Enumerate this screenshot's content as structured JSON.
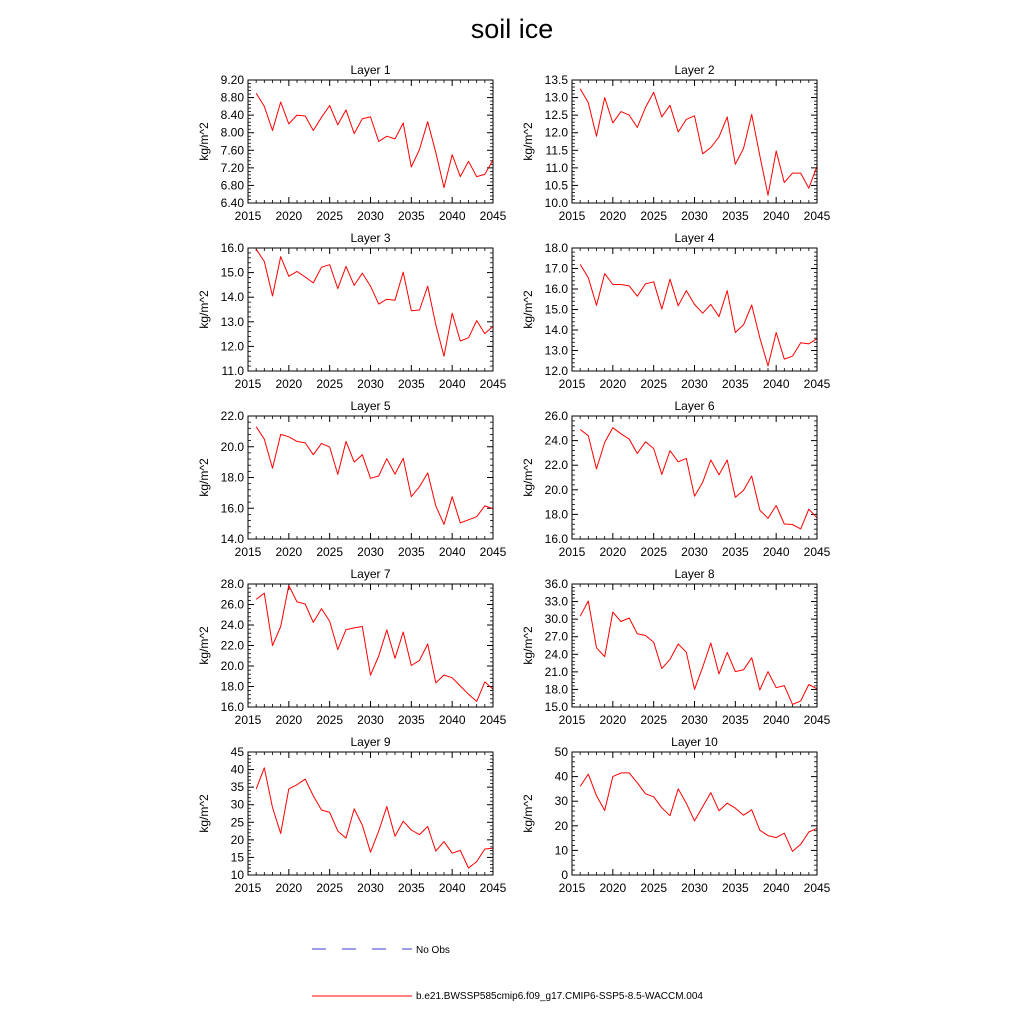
{
  "title": "soil ice",
  "colors": {
    "series": "#ff0000",
    "obs": "#3b3bd6",
    "axis": "#000000"
  },
  "legend": {
    "obs_label": "No Obs",
    "series_label": "b.e21.BWSSP585cmip6.f09_g17.CMIP6-SSP5-8.5-WACCM.004"
  },
  "chart_data": [
    {
      "type": "line",
      "title": "Layer 1",
      "ylabel": "kg/m^2",
      "xlim": [
        2015,
        2045
      ],
      "xticks": [
        2015,
        2020,
        2025,
        2030,
        2035,
        2040,
        2045
      ],
      "xtick_labels": [
        "2015",
        "2020",
        "2025",
        "2030",
        "2035",
        "2040",
        "2045"
      ],
      "ylim": [
        6.4,
        9.2
      ],
      "yticks": [
        6.4,
        6.8,
        7.2,
        7.6,
        8.0,
        8.4,
        8.8,
        9.2
      ],
      "ytick_labels": [
        "6.40",
        "6.80",
        "7.20",
        "7.60",
        "8.00",
        "8.40",
        "8.80",
        "9.20"
      ],
      "x": [
        2016,
        2017,
        2018,
        2019,
        2020,
        2021,
        2022,
        2023,
        2024,
        2025,
        2026,
        2027,
        2028,
        2029,
        2030,
        2031,
        2032,
        2033,
        2034,
        2035,
        2036,
        2037,
        2038,
        2039,
        2040,
        2041,
        2042,
        2043,
        2044,
        2045
      ],
      "y": [
        8.9,
        8.6,
        8.05,
        8.7,
        8.2,
        8.4,
        8.38,
        8.05,
        8.35,
        8.62,
        8.18,
        8.52,
        7.98,
        8.32,
        8.36,
        7.8,
        7.92,
        7.86,
        8.22,
        7.22,
        7.62,
        8.25,
        7.55,
        6.75,
        7.5,
        7.0,
        7.35,
        7.0,
        7.05,
        7.38
      ]
    },
    {
      "type": "line",
      "title": "Layer 2",
      "ylabel": "kg/m^2",
      "xlim": [
        2015,
        2045
      ],
      "xticks": [
        2015,
        2020,
        2025,
        2030,
        2035,
        2040,
        2045
      ],
      "xtick_labels": [
        "2015",
        "2020",
        "2025",
        "2030",
        "2035",
        "2040",
        "2045"
      ],
      "ylim": [
        10.0,
        13.5
      ],
      "yticks": [
        10.0,
        10.5,
        11.0,
        11.5,
        12.0,
        12.5,
        13.0,
        13.5
      ],
      "ytick_labels": [
        "10.0",
        "10.5",
        "11.0",
        "11.5",
        "12.0",
        "12.5",
        "13.0",
        "13.5"
      ],
      "x": [
        2016,
        2017,
        2018,
        2019,
        2020,
        2021,
        2022,
        2023,
        2024,
        2025,
        2026,
        2027,
        2028,
        2029,
        2030,
        2031,
        2032,
        2033,
        2034,
        2035,
        2036,
        2037,
        2038,
        2039,
        2040,
        2041,
        2042,
        2043,
        2044,
        2045
      ],
      "y": [
        13.25,
        12.85,
        11.9,
        13.0,
        12.28,
        12.6,
        12.5,
        12.15,
        12.72,
        13.15,
        12.45,
        12.78,
        12.02,
        12.38,
        12.48,
        11.4,
        11.58,
        11.88,
        12.45,
        11.1,
        11.55,
        12.52,
        11.35,
        10.22,
        11.48,
        10.58,
        10.85,
        10.85,
        10.42,
        11.05
      ]
    },
    {
      "type": "line",
      "title": "Layer 3",
      "ylabel": "kg/m^2",
      "xlim": [
        2015,
        2045
      ],
      "xticks": [
        2015,
        2020,
        2025,
        2030,
        2035,
        2040,
        2045
      ],
      "xtick_labels": [
        "2015",
        "2020",
        "2025",
        "2030",
        "2035",
        "2040",
        "2045"
      ],
      "ylim": [
        11.0,
        16.0
      ],
      "yticks": [
        11.0,
        12.0,
        13.0,
        14.0,
        15.0,
        16.0
      ],
      "ytick_labels": [
        "11.0",
        "12.0",
        "13.0",
        "14.0",
        "15.0",
        "16.0"
      ],
      "x": [
        2016,
        2017,
        2018,
        2019,
        2020,
        2021,
        2022,
        2023,
        2024,
        2025,
        2026,
        2027,
        2028,
        2029,
        2030,
        2031,
        2032,
        2033,
        2034,
        2035,
        2036,
        2037,
        2038,
        2039,
        2040,
        2041,
        2042,
        2043,
        2044,
        2045
      ],
      "y": [
        15.95,
        15.45,
        14.05,
        15.65,
        14.85,
        15.05,
        14.82,
        14.58,
        15.22,
        15.32,
        14.35,
        15.25,
        14.48,
        14.98,
        14.45,
        13.72,
        13.92,
        13.88,
        15.02,
        13.45,
        13.48,
        14.45,
        12.88,
        11.6,
        13.35,
        12.22,
        12.35,
        13.05,
        12.52,
        12.82
      ]
    },
    {
      "type": "line",
      "title": "Layer 4",
      "ylabel": "kg/m^2",
      "xlim": [
        2015,
        2045
      ],
      "xticks": [
        2015,
        2020,
        2025,
        2030,
        2035,
        2040,
        2045
      ],
      "xtick_labels": [
        "2015",
        "2020",
        "2025",
        "2030",
        "2035",
        "2040",
        "2045"
      ],
      "ylim": [
        12.0,
        18.0
      ],
      "yticks": [
        12.0,
        13.0,
        14.0,
        15.0,
        16.0,
        17.0,
        18.0
      ],
      "ytick_labels": [
        "12.0",
        "13.0",
        "14.0",
        "15.0",
        "16.0",
        "17.0",
        "18.0"
      ],
      "x": [
        2016,
        2017,
        2018,
        2019,
        2020,
        2021,
        2022,
        2023,
        2024,
        2025,
        2026,
        2027,
        2028,
        2029,
        2030,
        2031,
        2032,
        2033,
        2034,
        2035,
        2036,
        2037,
        2038,
        2039,
        2040,
        2041,
        2042,
        2043,
        2044,
        2045
      ],
      "y": [
        17.2,
        16.55,
        15.2,
        16.75,
        16.22,
        16.22,
        16.15,
        15.65,
        16.25,
        16.35,
        15.02,
        16.48,
        15.18,
        15.92,
        15.25,
        14.82,
        15.25,
        14.65,
        15.92,
        13.88,
        14.25,
        15.22,
        13.62,
        12.25,
        13.88,
        12.58,
        12.72,
        13.38,
        13.32,
        13.58
      ]
    },
    {
      "type": "line",
      "title": "Layer 5",
      "ylabel": "kg/m^2",
      "xlim": [
        2015,
        2045
      ],
      "xticks": [
        2015,
        2020,
        2025,
        2030,
        2035,
        2040,
        2045
      ],
      "xtick_labels": [
        "2015",
        "2020",
        "2025",
        "2030",
        "2035",
        "2040",
        "2045"
      ],
      "ylim": [
        14.0,
        22.0
      ],
      "yticks": [
        14.0,
        16.0,
        18.0,
        20.0,
        22.0
      ],
      "ytick_labels": [
        "14.0",
        "16.0",
        "18.0",
        "20.0",
        "22.0"
      ],
      "x": [
        2016,
        2017,
        2018,
        2019,
        2020,
        2021,
        2022,
        2023,
        2024,
        2025,
        2026,
        2027,
        2028,
        2029,
        2030,
        2031,
        2032,
        2033,
        2034,
        2035,
        2036,
        2037,
        2038,
        2039,
        2040,
        2041,
        2042,
        2043,
        2044,
        2045
      ],
      "y": [
        21.3,
        20.5,
        18.6,
        20.8,
        20.65,
        20.35,
        20.25,
        19.48,
        20.22,
        19.98,
        18.2,
        20.35,
        19.0,
        19.48,
        17.95,
        18.1,
        19.22,
        18.22,
        19.25,
        16.75,
        17.4,
        18.3,
        16.15,
        14.95,
        16.75,
        15.05,
        15.25,
        15.45,
        16.15,
        15.98
      ]
    },
    {
      "type": "line",
      "title": "Layer 6",
      "ylabel": "kg/m^2",
      "xlim": [
        2015,
        2045
      ],
      "xticks": [
        2015,
        2020,
        2025,
        2030,
        2035,
        2040,
        2045
      ],
      "xtick_labels": [
        "2015",
        "2020",
        "2025",
        "2030",
        "2035",
        "2040",
        "2045"
      ],
      "ylim": [
        16.0,
        26.0
      ],
      "yticks": [
        16.0,
        18.0,
        20.0,
        22.0,
        24.0,
        26.0
      ],
      "ytick_labels": [
        "16.0",
        "18.0",
        "20.0",
        "22.0",
        "24.0",
        "26.0"
      ],
      "x": [
        2016,
        2017,
        2018,
        2019,
        2020,
        2021,
        2022,
        2023,
        2024,
        2025,
        2026,
        2027,
        2028,
        2029,
        2030,
        2031,
        2032,
        2033,
        2034,
        2035,
        2036,
        2037,
        2038,
        2039,
        2040,
        2041,
        2042,
        2043,
        2044,
        2045
      ],
      "y": [
        24.9,
        24.4,
        21.7,
        23.85,
        25.05,
        24.55,
        24.12,
        22.95,
        23.9,
        23.35,
        21.25,
        23.18,
        22.28,
        22.55,
        19.48,
        20.62,
        22.42,
        21.22,
        22.42,
        19.38,
        19.95,
        21.12,
        18.35,
        17.68,
        18.72,
        17.22,
        17.18,
        16.82,
        18.42,
        17.72
      ]
    },
    {
      "type": "line",
      "title": "Layer 7",
      "ylabel": "kg/m^2",
      "xlim": [
        2015,
        2045
      ],
      "xticks": [
        2015,
        2020,
        2025,
        2030,
        2035,
        2040,
        2045
      ],
      "xtick_labels": [
        "2015",
        "2020",
        "2025",
        "2030",
        "2035",
        "2040",
        "2045"
      ],
      "ylim": [
        16.0,
        28.0
      ],
      "yticks": [
        16.0,
        18.0,
        20.0,
        22.0,
        24.0,
        26.0,
        28.0
      ],
      "ytick_labels": [
        "16.0",
        "18.0",
        "20.0",
        "22.0",
        "24.0",
        "26.0",
        "28.0"
      ],
      "x": [
        2016,
        2017,
        2018,
        2019,
        2020,
        2021,
        2022,
        2023,
        2024,
        2025,
        2026,
        2027,
        2028,
        2029,
        2030,
        2031,
        2032,
        2033,
        2034,
        2035,
        2036,
        2037,
        2038,
        2039,
        2040,
        2041,
        2042,
        2043,
        2044,
        2045
      ],
      "y": [
        26.5,
        27.1,
        22.0,
        23.85,
        27.85,
        26.25,
        26.05,
        24.25,
        25.6,
        24.35,
        21.6,
        23.55,
        23.72,
        23.85,
        19.1,
        20.98,
        23.52,
        20.75,
        23.32,
        20.05,
        20.55,
        22.15,
        18.35,
        19.12,
        18.85,
        18.05,
        17.25,
        16.55,
        18.45,
        17.75
      ]
    },
    {
      "type": "line",
      "title": "Layer 8",
      "ylabel": "kg/m^2",
      "xlim": [
        2015,
        2045
      ],
      "xticks": [
        2015,
        2020,
        2025,
        2030,
        2035,
        2040,
        2045
      ],
      "xtick_labels": [
        "2015",
        "2020",
        "2025",
        "2030",
        "2035",
        "2040",
        "2045"
      ],
      "ylim": [
        15.0,
        36.0
      ],
      "yticks": [
        15.0,
        18.0,
        21.0,
        24.0,
        27.0,
        30.0,
        33.0,
        36.0
      ],
      "ytick_labels": [
        "15.0",
        "18.0",
        "21.0",
        "24.0",
        "27.0",
        "30.0",
        "33.0",
        "36.0"
      ],
      "x": [
        2016,
        2017,
        2018,
        2019,
        2020,
        2021,
        2022,
        2023,
        2024,
        2025,
        2026,
        2027,
        2028,
        2029,
        2030,
        2031,
        2032,
        2033,
        2034,
        2035,
        2036,
        2037,
        2038,
        2039,
        2040,
        2041,
        2042,
        2043,
        2044,
        2045
      ],
      "y": [
        30.5,
        33.1,
        25.1,
        23.6,
        31.2,
        29.6,
        30.2,
        27.5,
        27.2,
        26.05,
        21.55,
        23.12,
        25.75,
        24.35,
        18.0,
        21.82,
        25.92,
        20.65,
        24.3,
        21.05,
        21.35,
        23.4,
        17.9,
        21.05,
        18.3,
        18.65,
        15.45,
        16.05,
        18.85,
        18.1
      ]
    },
    {
      "type": "line",
      "title": "Layer 9",
      "ylabel": "kg/m^2",
      "xlim": [
        2015,
        2045
      ],
      "xticks": [
        2015,
        2020,
        2025,
        2030,
        2035,
        2040,
        2045
      ],
      "xtick_labels": [
        "2015",
        "2020",
        "2025",
        "2030",
        "2035",
        "2040",
        "2045"
      ],
      "ylim": [
        10,
        45
      ],
      "yticks": [
        10,
        15,
        20,
        25,
        30,
        35,
        40,
        45
      ],
      "ytick_labels": [
        "10",
        "15",
        "20",
        "25",
        "30",
        "35",
        "40",
        "45"
      ],
      "x": [
        2016,
        2017,
        2018,
        2019,
        2020,
        2021,
        2022,
        2023,
        2024,
        2025,
        2026,
        2027,
        2028,
        2029,
        2030,
        2031,
        2032,
        2033,
        2034,
        2035,
        2036,
        2037,
        2038,
        2039,
        2040,
        2041,
        2042,
        2043,
        2044,
        2045
      ],
      "y": [
        34.5,
        40.5,
        29.2,
        21.8,
        34.5,
        35.7,
        37.3,
        32.5,
        28.5,
        27.8,
        22.5,
        20.5,
        28.8,
        24.2,
        16.5,
        22.5,
        29.5,
        21.0,
        25.3,
        22.8,
        21.5,
        23.8,
        16.8,
        19.5,
        16.2,
        17.0,
        12.0,
        13.8,
        17.4,
        17.6
      ]
    },
    {
      "type": "line",
      "title": "Layer 10",
      "ylabel": "kg/m^2",
      "xlim": [
        2015,
        2045
      ],
      "xticks": [
        2015,
        2020,
        2025,
        2030,
        2035,
        2040,
        2045
      ],
      "xtick_labels": [
        "2015",
        "2020",
        "2025",
        "2030",
        "2035",
        "2040",
        "2045"
      ],
      "ylim": [
        0,
        50
      ],
      "yticks": [
        0,
        10,
        20,
        30,
        40,
        50
      ],
      "ytick_labels": [
        "0",
        "10",
        "20",
        "30",
        "40",
        "50"
      ],
      "x": [
        2016,
        2017,
        2018,
        2019,
        2020,
        2021,
        2022,
        2023,
        2024,
        2025,
        2026,
        2027,
        2028,
        2029,
        2030,
        2031,
        2032,
        2033,
        2034,
        2035,
        2036,
        2037,
        2038,
        2039,
        2040,
        2041,
        2042,
        2043,
        2044,
        2045
      ],
      "y": [
        36.0,
        41.0,
        32.2,
        26.2,
        40.0,
        41.5,
        41.5,
        37.5,
        33.0,
        31.8,
        27.3,
        24.1,
        35.0,
        29.2,
        22.0,
        27.8,
        33.5,
        26.1,
        29.2,
        27.2,
        24.3,
        26.5,
        18.2,
        16.0,
        15.2,
        17.0,
        9.6,
        12.5,
        17.5,
        19.0
      ]
    }
  ]
}
